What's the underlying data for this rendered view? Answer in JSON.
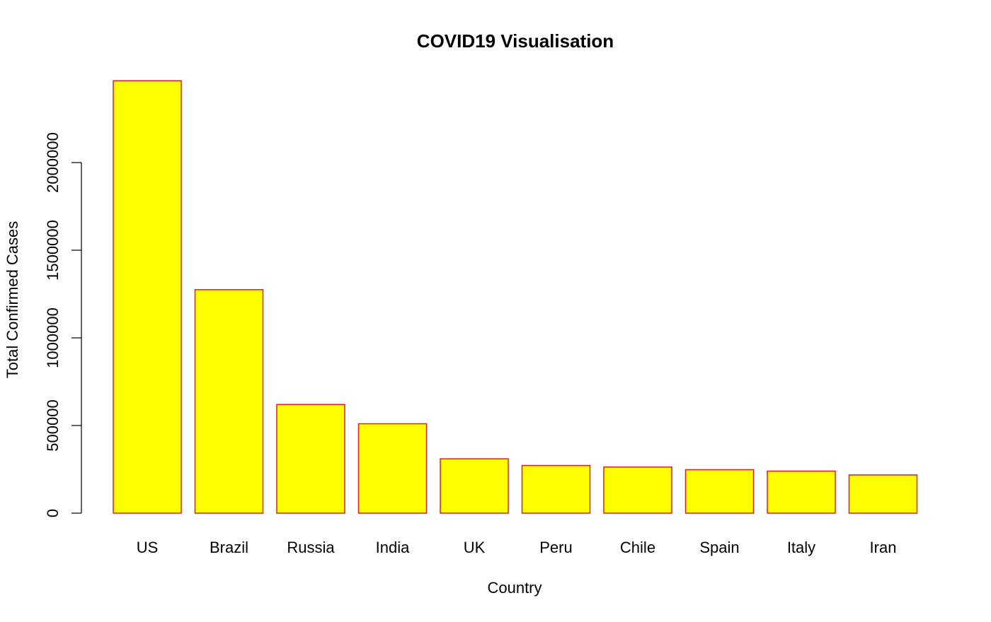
{
  "chart_data": {
    "type": "bar",
    "title": "COVID19 Visualisation",
    "xlabel": "Country",
    "ylabel": "Total Confirmed Cases",
    "categories": [
      "US",
      "Brazil",
      "Russia",
      "India",
      "UK",
      "Peru",
      "Chile",
      "Spain",
      "Italy",
      "Iran"
    ],
    "values": [
      2467000,
      1275000,
      620000,
      510000,
      310000,
      272000,
      263000,
      248000,
      240000,
      218000
    ],
    "yticks": [
      0,
      500000,
      1000000,
      1500000,
      2000000
    ],
    "ytick_labels": [
      "0",
      "500000",
      "1000000",
      "1500000",
      "2000000"
    ],
    "ylim": [
      0,
      2500000
    ],
    "bar_fill": "#ffff00",
    "bar_border": "#e0201c",
    "grid": false,
    "legend": "none"
  }
}
